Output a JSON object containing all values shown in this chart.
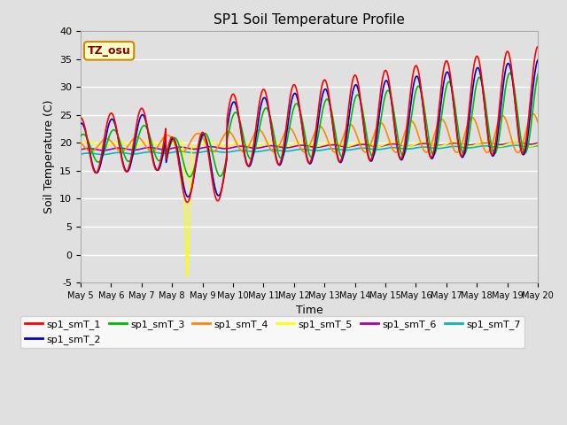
{
  "title": "SP1 Soil Temperature Profile",
  "xlabel": "Time",
  "ylabel": "Soil Temperature (C)",
  "ylim": [
    -5,
    40
  ],
  "annotation": "TZ_osu",
  "fig_bg": "#e0e0e0",
  "axes_bg": "#e0e0e0",
  "series_colors": {
    "sp1_smT_1": "#ff0000",
    "sp1_smT_2": "#0000cc",
    "sp1_smT_3": "#00bb00",
    "sp1_smT_4": "#ff8800",
    "sp1_smT_5": "#ffff00",
    "sp1_smT_6": "#aa00aa",
    "sp1_smT_7": "#00bbbb"
  },
  "legend_labels": [
    "sp1_smT_1",
    "sp1_smT_2",
    "sp1_smT_3",
    "sp1_smT_4",
    "sp1_smT_5",
    "sp1_smT_6",
    "sp1_smT_7"
  ],
  "yticks": [
    -5,
    0,
    5,
    10,
    15,
    20,
    25,
    30,
    35,
    40
  ],
  "xtick_labels": [
    "May 5",
    "May 6",
    "May 7",
    "May 8",
    "May 9",
    "May 10",
    "May 11",
    "May 12",
    "May 13",
    "May 14",
    "May 15",
    "May 16",
    "May 17",
    "May 18",
    "May 19",
    "May 20"
  ],
  "n_points": 1000
}
